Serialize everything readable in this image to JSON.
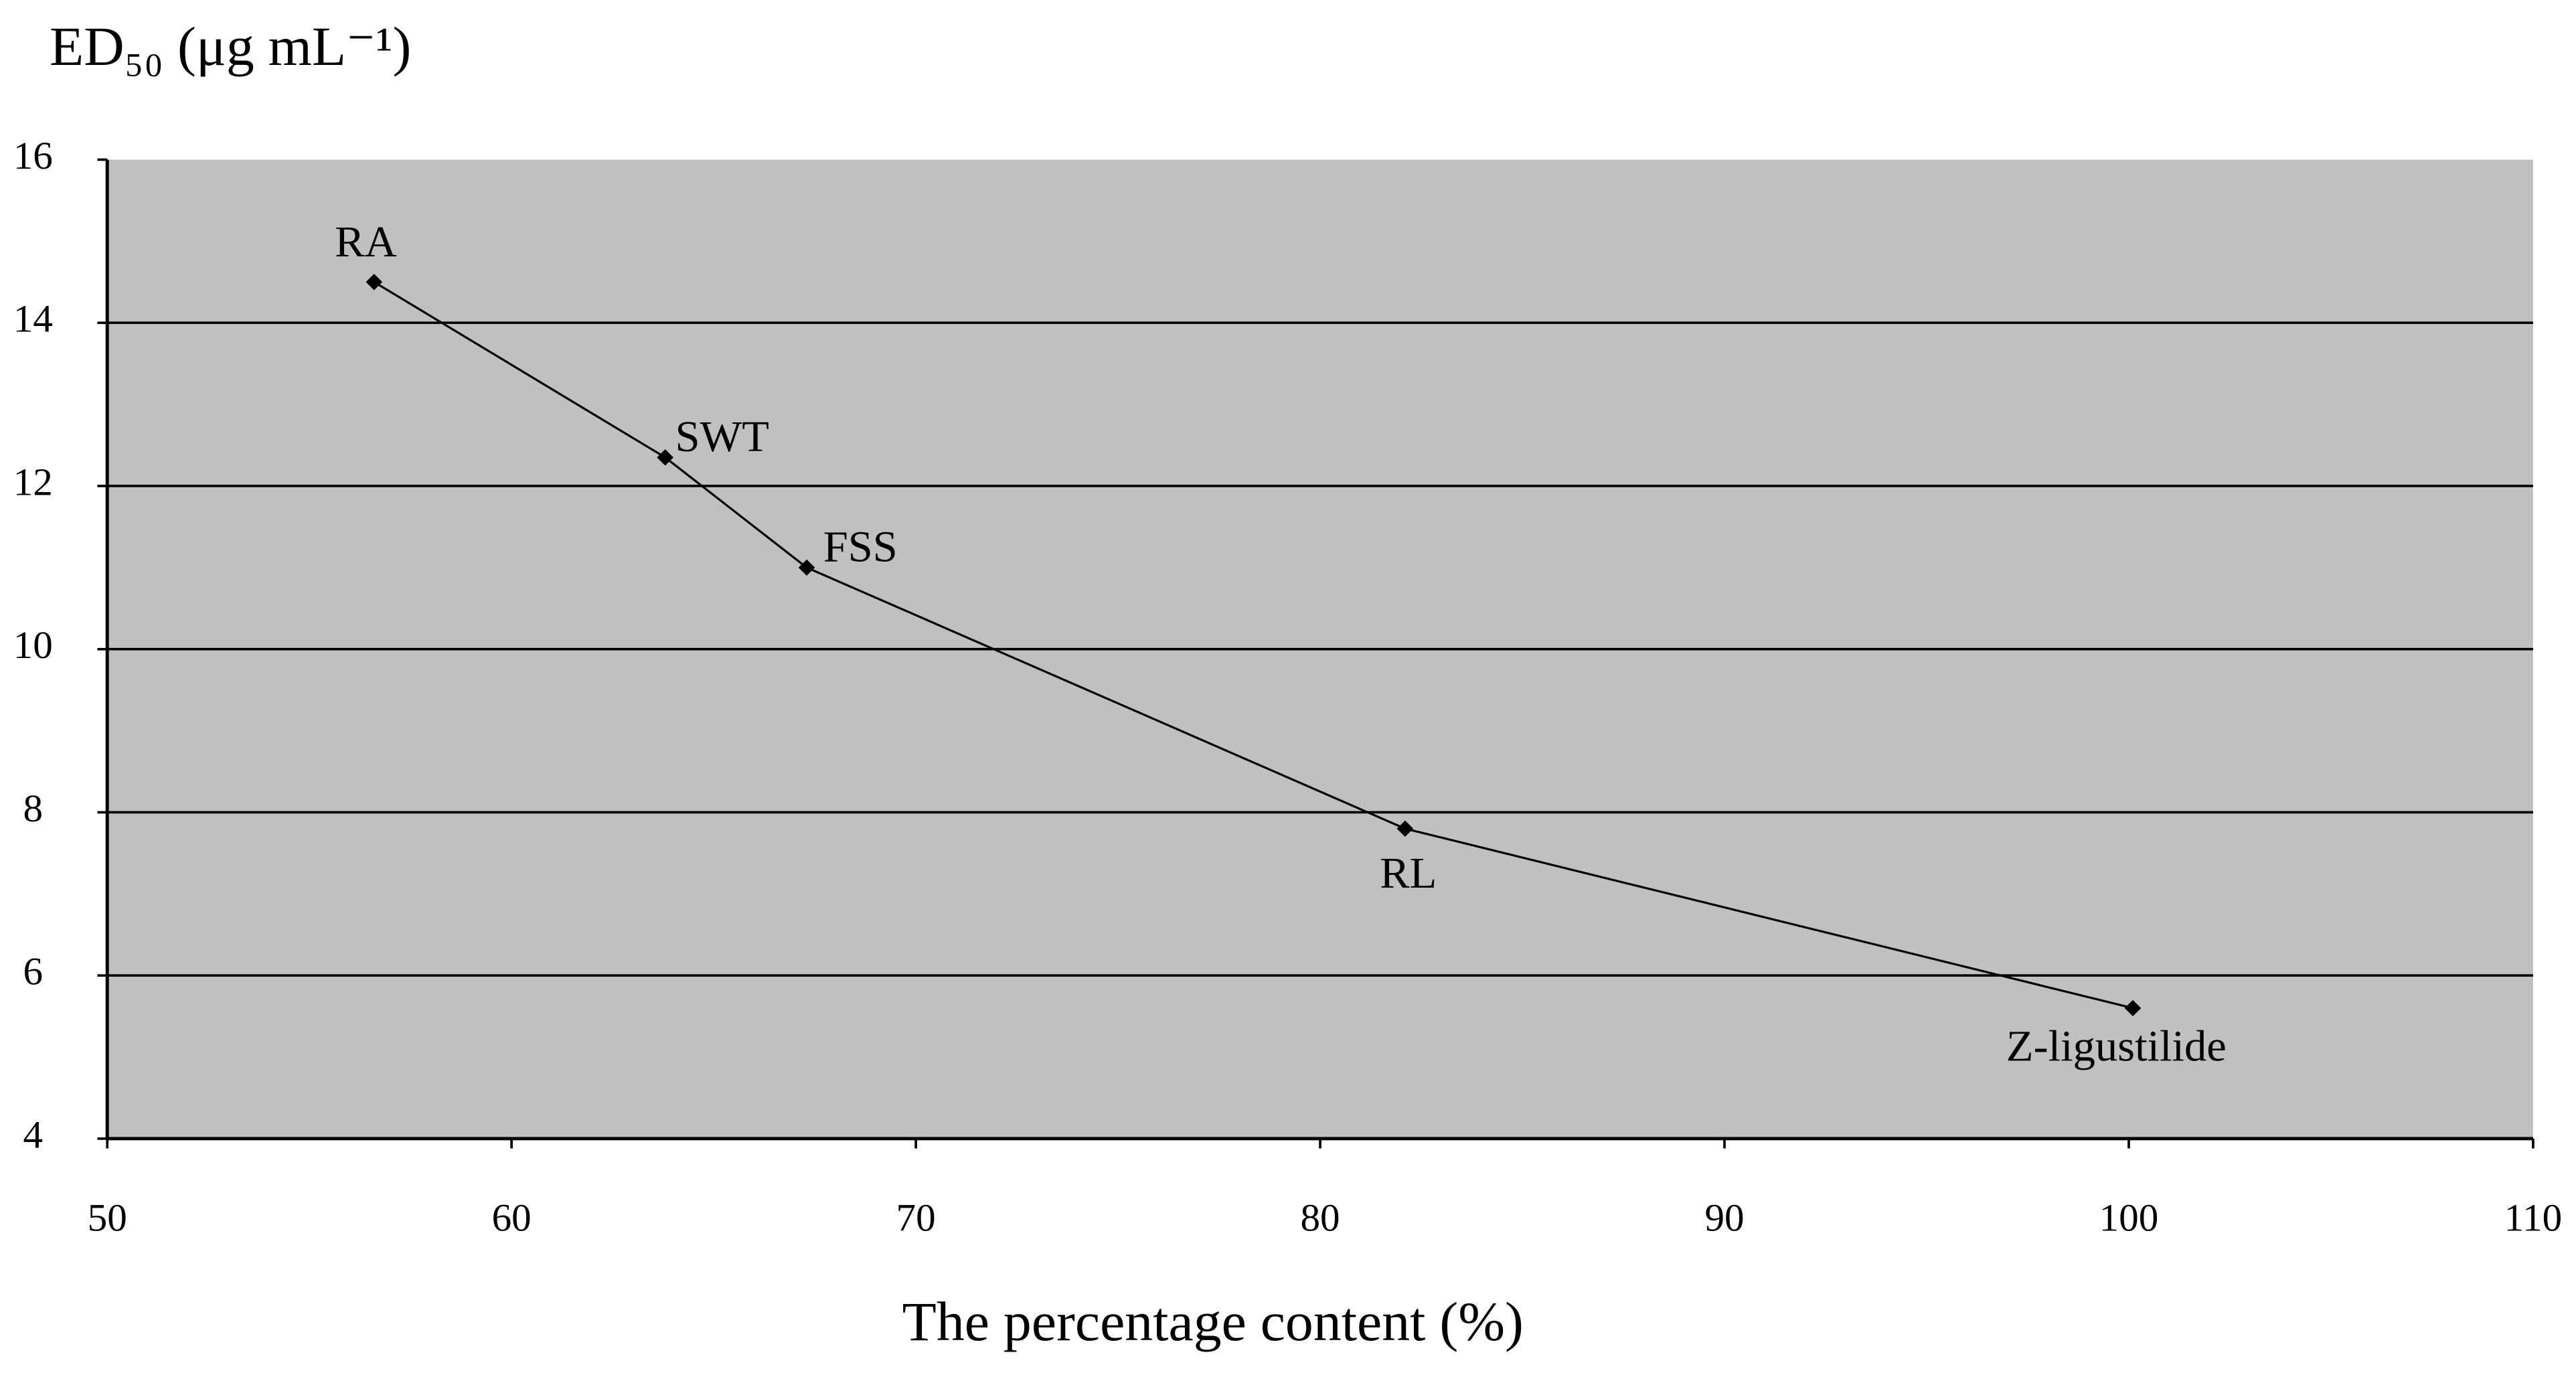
{
  "chart_data": {
    "type": "line",
    "y_axis_title": "ED₅₀ (μg mL⁻¹)",
    "x_axis_title": "The percentage content (%)",
    "x": [
      56.6,
      63.8,
      67.3,
      82.1,
      100.1
    ],
    "point_labels": [
      "RA",
      "SWT",
      "FSS",
      "RL",
      "Z-ligustilide"
    ],
    "series": [
      {
        "name": "ED50",
        "color": "#000000",
        "values": [
          14.5,
          12.35,
          11.0,
          7.8,
          5.6
        ]
      }
    ],
    "xlim": [
      50,
      110
    ],
    "xticks": [
      50,
      60,
      70,
      80,
      90,
      100,
      110
    ],
    "ylim": [
      4,
      16
    ],
    "yticks": [
      4,
      6,
      8,
      10,
      12,
      14,
      16
    ],
    "grid": true,
    "plot_background": "#c0c0c0"
  }
}
